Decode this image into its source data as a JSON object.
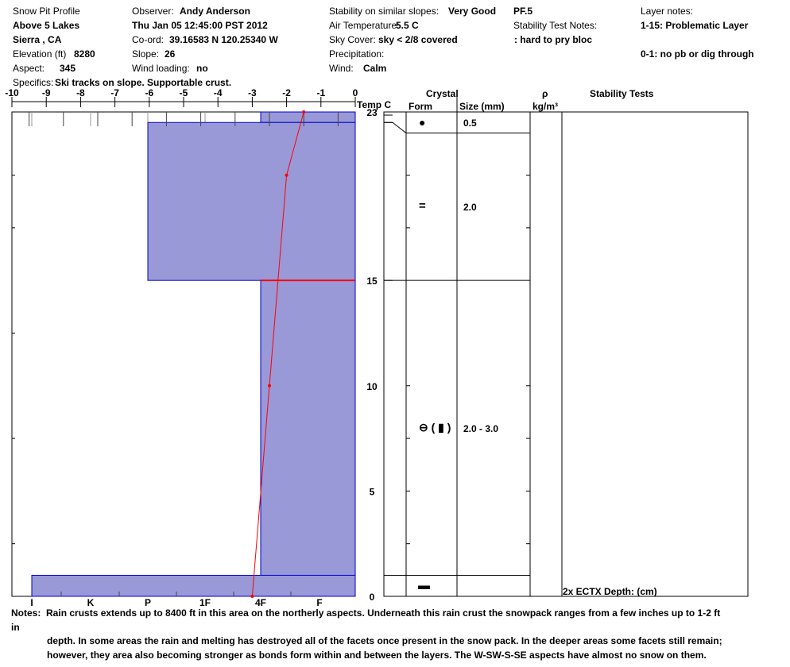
{
  "header": {
    "title": "Snow Pit Profile",
    "location": "Above 5 Lakes",
    "region": "Sierra , CA",
    "elevation_label": "Elevation (ft)",
    "elevation": "8280",
    "aspect_label": "Aspect:",
    "aspect": "345",
    "specifics_label": "Specifics:",
    "specifics": "Ski tracks on slope. Supportable crust.",
    "observer_label": "Observer:",
    "observer": "Andy Anderson",
    "datetime": "Thu Jan 05 12:45:00 PST 2012",
    "coord_label": "Co-ord:",
    "coord": "39.16583 N 120.25340 W",
    "slope_label": "Slope:",
    "slope": "26",
    "wind_loading_label": "Wind loading:",
    "wind_loading": "no",
    "stability_label": "Stability on similar slopes:",
    "stability": "Very Good",
    "air_temp_label": "Air Temperature:",
    "air_temp": "5.5 C",
    "sky_label": "Sky Cover:",
    "sky": "sky < 2/8 covered",
    "precip_label": "Precipitation:",
    "wind_label": "Wind:",
    "wind": "Calm",
    "pf": "PF.5",
    "stability_test_notes_label": "Stability Test Notes:",
    "stability_test_notes": ": hard to pry bloc",
    "layer_notes_label": "Layer notes:",
    "layer_notes": [
      "1-15: Problematic Layer",
      "0-1: no pb or dig through"
    ]
  },
  "table_headers": {
    "crystal": "Crystal",
    "form": "Form",
    "size": "Size (mm)",
    "rho": "ρ",
    "density_unit": "kg/m³",
    "stability_tests": "Stability Tests"
  },
  "crystals": [
    {
      "form_icon": "rounded-grain-dot",
      "form": "●",
      "size": "0.5"
    },
    {
      "form_icon": "melt-freeze-crust",
      "form": "=",
      "size": "2.0"
    },
    {
      "form_icon": "depth-hoar-faceted",
      "form": "⊖ ( ▮ )",
      "size": "2.0 - 3.0"
    },
    {
      "form_icon": "ice-layer",
      "form": "▬",
      "size": ""
    }
  ],
  "stability_test": "2x ECTX   Depth: (cm)",
  "notes_label": "Notes:",
  "notes": [
    "Rain crusts extends up to 8400 ft in this area on the northerly aspects. Underneath this rain crust the snowpack ranges from a few inches up to 1-2 ft in",
    "depth. In some areas the rain and melting has destroyed all of the facets once present in the snow pack. In the deeper areas some facets still remain;",
    "however, they area also becoming stronger as bonds form within and between the layers. The W-SW-S-SE aspects have almost no snow on them."
  ],
  "chart_data": {
    "type": "snow-profile",
    "temp_axis": {
      "label": "Temp C",
      "range": [
        -10,
        0
      ],
      "ticks": [
        "-10",
        "-9",
        "-8",
        "-7",
        "-6",
        "-5",
        "-4",
        "-3",
        "-2",
        "-1",
        "0"
      ]
    },
    "depth_axis": {
      "range": [
        0,
        23
      ],
      "ticks": [
        "0",
        "5",
        "10",
        "15",
        "23"
      ]
    },
    "hardness_axis": {
      "ticks": [
        "I",
        "K",
        "P",
        "1F",
        "4F",
        "F"
      ]
    },
    "layers": [
      {
        "bottom": 22.5,
        "top": 23,
        "hardness": "4F"
      },
      {
        "bottom": 15,
        "top": 22.5,
        "hardness": "P"
      },
      {
        "bottom": 1,
        "top": 15,
        "hardness": "4F"
      },
      {
        "bottom": 0,
        "top": 1,
        "hardness": "I"
      }
    ],
    "crystal_layer_bounds": [
      23,
      22,
      15,
      1,
      0
    ],
    "problem_boundary_depth": 15,
    "temperature_profile": [
      {
        "depth": 23,
        "temp": -1.5
      },
      {
        "depth": 20,
        "temp": -2.0
      },
      {
        "depth": 10,
        "temp": -2.5
      },
      {
        "depth": 0,
        "temp": -3.0
      }
    ],
    "colors": {
      "layer_fill": "#9999d8",
      "layer_edge": "#0000cc",
      "temp_line": "#ff0000"
    }
  }
}
